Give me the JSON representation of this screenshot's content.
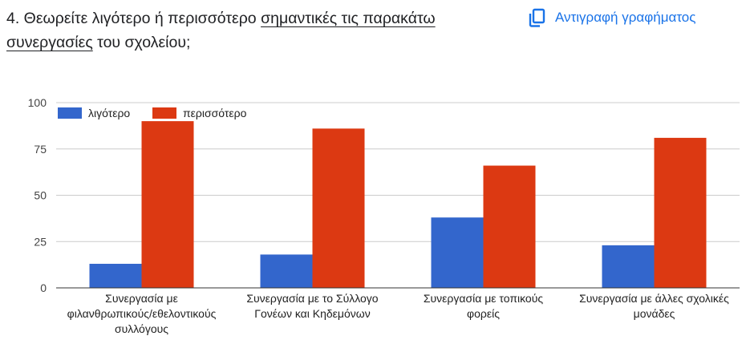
{
  "question": {
    "prefix": "4. Θεωρείτε λιγότερο ή περισσότερο ",
    "underlined": "σημαντικές τις παρακάτω συνεργασίες",
    "suffix": " του σχολείου;"
  },
  "copy_button": {
    "label": "Αντιγραφή γραφήματος",
    "icon": "copy-icon",
    "color": "#1a73e8"
  },
  "chart_data": {
    "type": "bar",
    "categories": [
      [
        "Συνεργασία με",
        "φιλανθρωπικούς/εθελοντικούς",
        "συλλόγους"
      ],
      [
        "Συνεργασία με το Σύλλογο",
        "Γονέων και Κηδεμόνων"
      ],
      [
        "Συνεργασία με τοπικούς",
        "φορείς"
      ],
      [
        "Συνεργασία με άλλες σχολικές",
        "μονάδες"
      ]
    ],
    "series": [
      {
        "name": "λιγότερο",
        "color": "#3366cc",
        "values": [
          13,
          18,
          38,
          23
        ]
      },
      {
        "name": "περισσότερο",
        "color": "#dc3912",
        "values": [
          90,
          86,
          66,
          81
        ]
      }
    ],
    "yticks": [
      0,
      25,
      50,
      75,
      100
    ],
    "ylim": [
      0,
      100
    ],
    "grid": true,
    "legend_position": "top-left"
  }
}
